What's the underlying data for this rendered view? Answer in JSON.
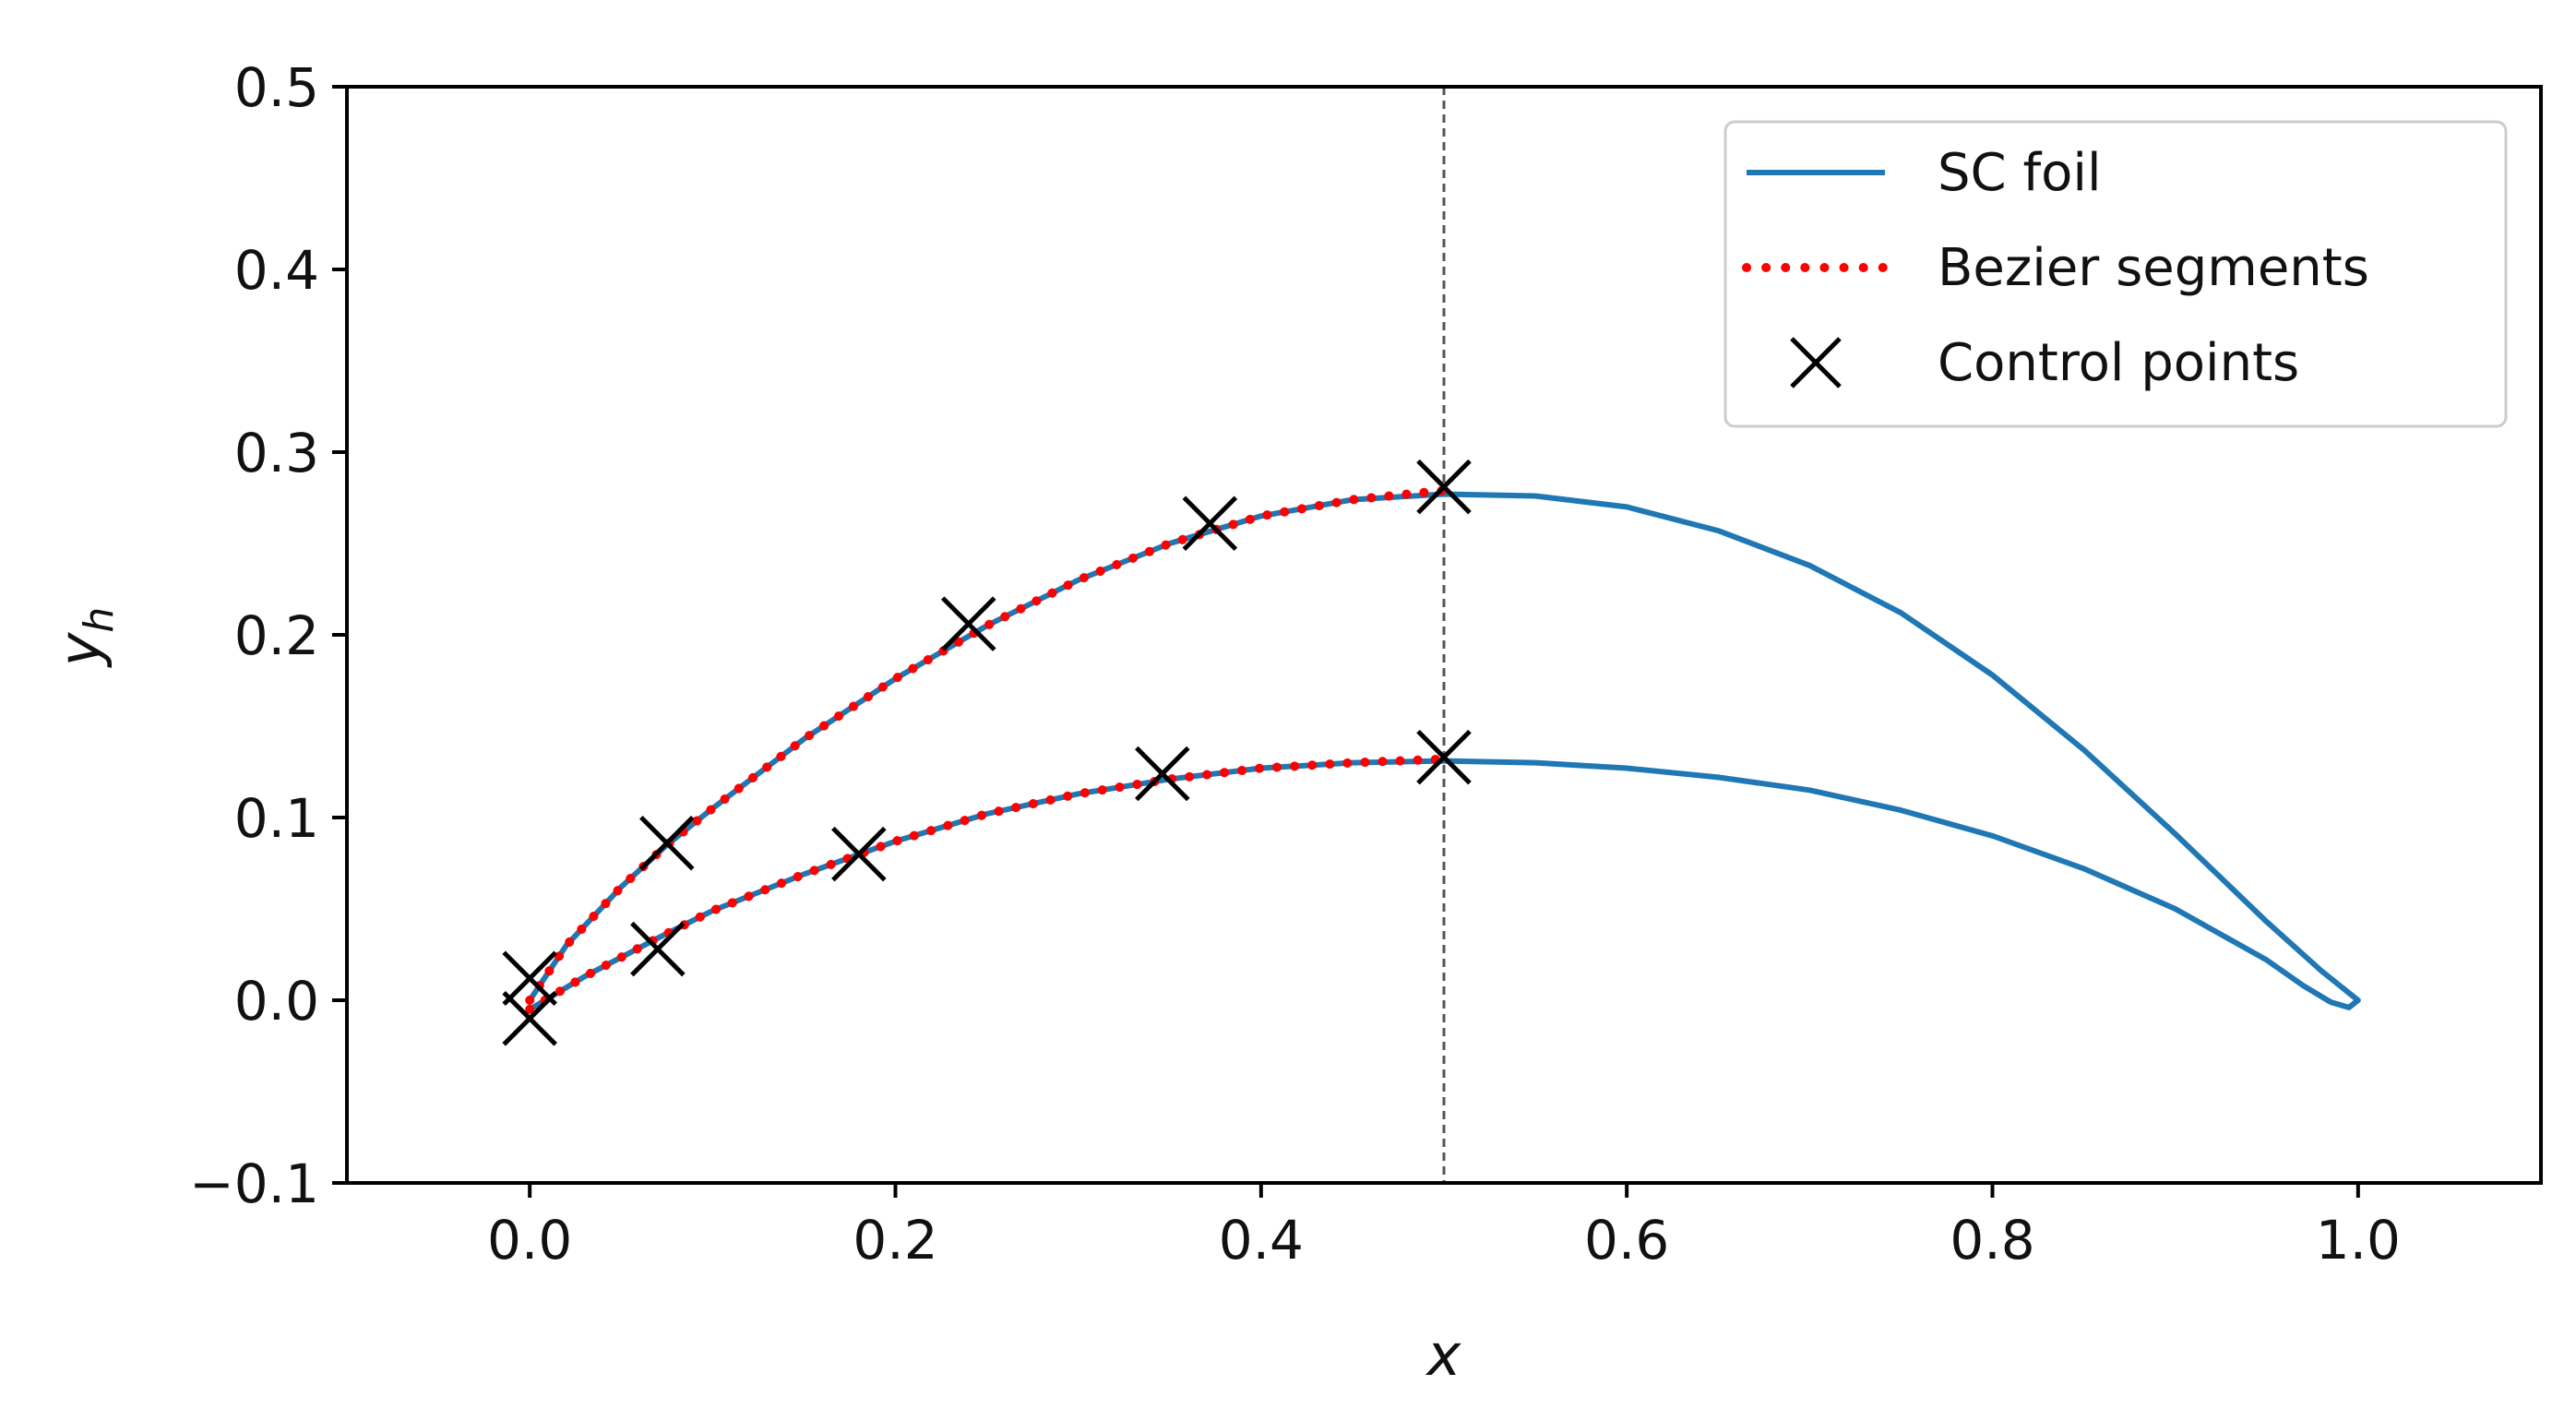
{
  "colors": {
    "foil": "#1f77b4",
    "bezier": "#ff0000",
    "control_points": "#000000",
    "divider": "#555555",
    "axes": "#000000"
  },
  "chart_data": {
    "type": "line",
    "title": "",
    "xlabel": "x",
    "ylabel": "y",
    "ylabel_subscript": "h",
    "xlim": [
      -0.1,
      1.1
    ],
    "ylim": [
      -0.1,
      0.5
    ],
    "xticks": [
      0.0,
      0.2,
      0.4,
      0.6,
      0.8,
      1.0
    ],
    "xtick_labels": [
      "0.0",
      "0.2",
      "0.4",
      "0.6",
      "0.8",
      "1.0"
    ],
    "yticks": [
      -0.1,
      0.0,
      0.1,
      0.2,
      0.3,
      0.4,
      0.5
    ],
    "ytick_labels": [
      "−0.1",
      "0.0",
      "0.1",
      "0.2",
      "0.3",
      "0.4",
      "0.5"
    ],
    "grid": false,
    "legend_position": "top-right",
    "vertical_line_x": 0.5,
    "series": [
      {
        "name": "SC foil",
        "style": "solid",
        "curves": [
          [
            [
              0.0,
              0.0
            ],
            [
              0.02,
              0.03
            ],
            [
              0.05,
              0.062
            ],
            [
              0.075,
              0.085
            ],
            [
              0.1,
              0.105
            ],
            [
              0.15,
              0.143
            ],
            [
              0.2,
              0.176
            ],
            [
              0.25,
              0.205
            ],
            [
              0.3,
              0.23
            ],
            [
              0.35,
              0.25
            ],
            [
              0.4,
              0.265
            ],
            [
              0.45,
              0.274
            ],
            [
              0.5,
              0.277
            ],
            [
              0.55,
              0.276
            ],
            [
              0.6,
              0.27
            ],
            [
              0.65,
              0.257
            ],
            [
              0.7,
              0.238
            ],
            [
              0.75,
              0.212
            ],
            [
              0.8,
              0.178
            ],
            [
              0.85,
              0.137
            ],
            [
              0.9,
              0.091
            ],
            [
              0.95,
              0.043
            ],
            [
              0.98,
              0.016
            ],
            [
              0.995,
              0.004
            ],
            [
              1.0,
              0.0
            ],
            [
              0.995,
              -0.004
            ],
            [
              0.985,
              -0.001
            ],
            [
              0.97,
              0.008
            ],
            [
              0.95,
              0.022
            ],
            [
              0.9,
              0.05
            ],
            [
              0.85,
              0.072
            ],
            [
              0.8,
              0.09
            ],
            [
              0.75,
              0.104
            ],
            [
              0.7,
              0.115
            ],
            [
              0.65,
              0.122
            ],
            [
              0.6,
              0.127
            ],
            [
              0.55,
              0.13
            ],
            [
              0.5,
              0.131
            ],
            [
              0.45,
              0.13
            ],
            [
              0.4,
              0.127
            ],
            [
              0.35,
              0.121
            ],
            [
              0.3,
              0.113
            ],
            [
              0.25,
              0.102
            ],
            [
              0.2,
              0.087
            ],
            [
              0.15,
              0.069
            ],
            [
              0.1,
              0.049
            ],
            [
              0.07,
              0.034
            ],
            [
              0.03,
              0.013
            ],
            [
              0.0,
              -0.005
            ]
          ]
        ]
      },
      {
        "name": "Bezier segments",
        "style": "dotted",
        "curves": [
          [
            [
              0.0,
              0.0
            ],
            [
              0.02,
              0.03
            ],
            [
              0.05,
              0.062
            ],
            [
              0.075,
              0.085
            ],
            [
              0.1,
              0.105
            ],
            [
              0.15,
              0.143
            ],
            [
              0.2,
              0.176
            ],
            [
              0.25,
              0.205
            ],
            [
              0.3,
              0.23
            ],
            [
              0.35,
              0.25
            ],
            [
              0.4,
              0.265
            ],
            [
              0.45,
              0.274
            ],
            [
              0.5,
              0.279
            ]
          ],
          [
            [
              0.0,
              -0.005
            ],
            [
              0.03,
              0.013
            ],
            [
              0.07,
              0.034
            ],
            [
              0.1,
              0.049
            ],
            [
              0.15,
              0.069
            ],
            [
              0.2,
              0.087
            ],
            [
              0.25,
              0.102
            ],
            [
              0.3,
              0.113
            ],
            [
              0.35,
              0.121
            ],
            [
              0.4,
              0.127
            ],
            [
              0.45,
              0.13
            ],
            [
              0.5,
              0.132
            ]
          ]
        ]
      }
    ],
    "control_points": {
      "name": "Control points",
      "points": [
        [
          0.0,
          0.012
        ],
        [
          0.075,
          0.086
        ],
        [
          0.24,
          0.206
        ],
        [
          0.372,
          0.261
        ],
        [
          0.5,
          0.281
        ],
        [
          0.0,
          -0.01
        ],
        [
          0.07,
          0.028
        ],
        [
          0.18,
          0.08
        ],
        [
          0.346,
          0.124
        ],
        [
          0.5,
          0.133
        ]
      ]
    }
  }
}
